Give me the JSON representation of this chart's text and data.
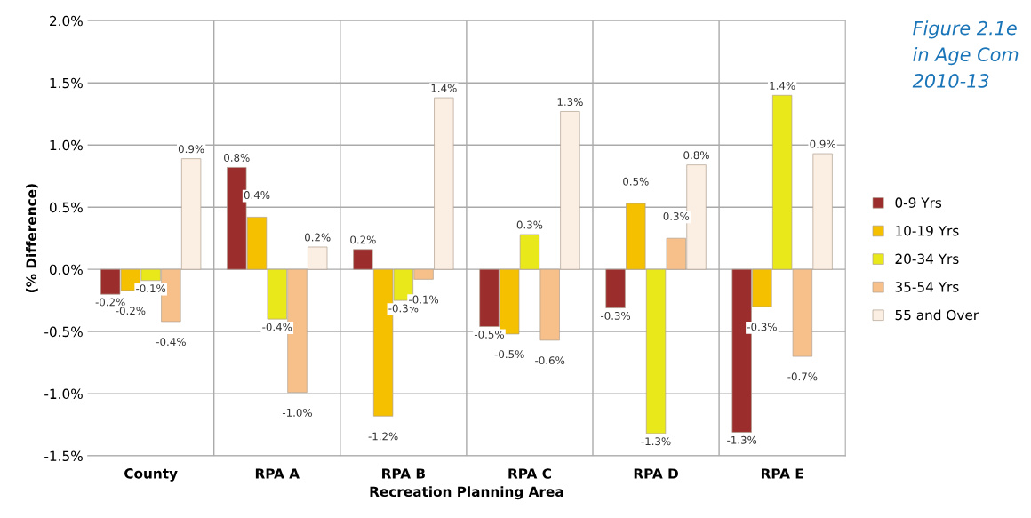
{
  "chart_data": {
    "type": "bar",
    "title": "Figure 2.1e\nin Age Com\n2010-13",
    "xlabel": "Recreation Planning Area",
    "ylabel": "(% Difference)",
    "categories": [
      "County",
      "RPA A",
      "RPA B",
      "RPA C",
      "RPA D",
      "RPA E"
    ],
    "series": [
      {
        "name": "0-9 Yrs",
        "color": "#9b2d2d",
        "values": [
          -0.2,
          0.82,
          0.16,
          -0.46,
          -0.31,
          -1.31
        ],
        "value_labels": [
          "-0.2%",
          "0.8%",
          "0.2%",
          "-0.5%",
          "-0.3%",
          "-1.3%"
        ]
      },
      {
        "name": "10-19 Yrs",
        "color": "#f5c000",
        "values": [
          -0.17,
          0.42,
          -1.18,
          -0.52,
          0.53,
          -0.3
        ],
        "value_labels": [
          "-0.2%",
          "0.4%",
          "-1.2%",
          "-0.5%",
          "0.5%",
          "-0.3%"
        ]
      },
      {
        "name": "20-34 Yrs",
        "color": "#e8e81a",
        "values": [
          -0.09,
          -0.4,
          -0.25,
          0.28,
          -1.32,
          1.4
        ],
        "value_labels": [
          "-0.1%",
          "-0.4%",
          "-0.3%",
          "0.3%",
          "-1.3%",
          "1.4%"
        ]
      },
      {
        "name": "35-54 Yrs",
        "color": "#f7c08a",
        "values": [
          -0.42,
          -0.99,
          -0.08,
          -0.57,
          0.25,
          -0.7
        ],
        "value_labels": [
          "-0.4%",
          "-1.0%",
          "-0.1%",
          "-0.6%",
          "0.3%",
          "-0.7%"
        ]
      },
      {
        "name": "55 and Over",
        "color": "#fbeee2",
        "values": [
          0.89,
          0.18,
          1.38,
          1.27,
          0.84,
          0.93
        ],
        "value_labels": [
          "0.9%",
          "0.2%",
          "1.4%",
          "1.3%",
          "0.8%",
          "0.9%"
        ]
      }
    ],
    "ylim": [
      -1.5,
      2.0
    ],
    "yticks": [
      {
        "value": -1.5,
        "label": "-1.5%"
      },
      {
        "value": -1.0,
        "label": "-1.0%"
      },
      {
        "value": -0.5,
        "label": "-0.5%"
      },
      {
        "value": 0.0,
        "label": "0.0%"
      },
      {
        "value": 0.5,
        "label": "0.5%"
      },
      {
        "value": 1.0,
        "label": "1.0%"
      },
      {
        "value": 1.5,
        "label": "1.5%"
      },
      {
        "value": 2.0,
        "label": "2.0%"
      }
    ],
    "grid": true,
    "legend": "right"
  }
}
